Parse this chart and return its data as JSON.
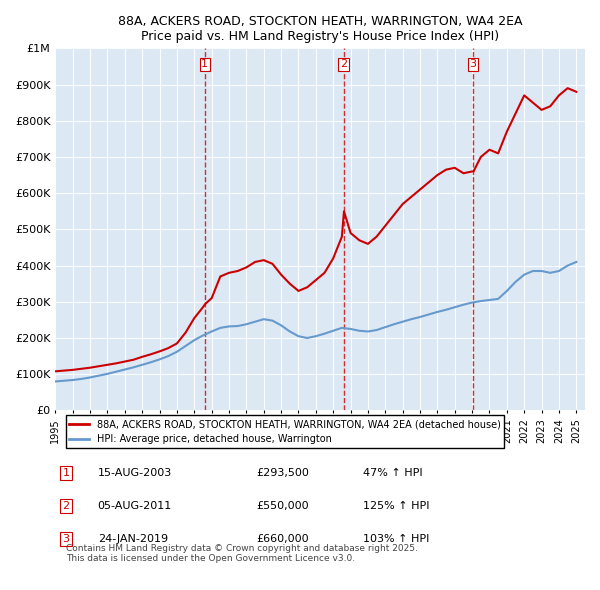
{
  "title": "88A, ACKERS ROAD, STOCKTON HEATH, WARRINGTON, WA4 2EA",
  "subtitle": "Price paid vs. HM Land Registry's House Price Index (HPI)",
  "xlabel": "",
  "ylabel": "",
  "ylim": [
    0,
    1000000
  ],
  "yticks": [
    0,
    100000,
    200000,
    300000,
    400000,
    500000,
    600000,
    700000,
    800000,
    900000,
    1000000
  ],
  "ytick_labels": [
    "£0",
    "£100K",
    "£200K",
    "£300K",
    "£400K",
    "£500K",
    "£600K",
    "£700K",
    "£800K",
    "£900K",
    "£1M"
  ],
  "xlim_start": 1995.0,
  "xlim_end": 2025.5,
  "bg_color": "#dce9f5",
  "plot_bg_color": "#dce9f5",
  "transactions": [
    {
      "num": 1,
      "date": "15-AUG-2003",
      "price": 293500,
      "pct": "47%",
      "dir": "↑",
      "x_year": 2003.6
    },
    {
      "num": 2,
      "date": "05-AUG-2011",
      "price": 550000,
      "pct": "125%",
      "dir": "↑",
      "x_year": 2011.6
    },
    {
      "num": 3,
      "date": "24-JAN-2019",
      "price": 660000,
      "pct": "103%",
      "dir": "↑",
      "x_year": 2019.05
    }
  ],
  "red_line_color": "#cc0000",
  "blue_line_color": "#6699cc",
  "vline_color": "#cc0000",
  "legend_label_red": "88A, ACKERS ROAD, STOCKTON HEATH, WARRINGTON, WA4 2EA (detached house)",
  "legend_label_blue": "HPI: Average price, detached house, Warrington",
  "footer1": "Contains HM Land Registry data © Crown copyright and database right 2025.",
  "footer2": "This data is licensed under the Open Government Licence v3.0.",
  "red_x": [
    1995.0,
    1995.5,
    1996.0,
    1996.5,
    1997.0,
    1997.5,
    1998.0,
    1998.5,
    1999.0,
    1999.5,
    2000.0,
    2000.5,
    2001.0,
    2001.5,
    2002.0,
    2002.5,
    2003.0,
    2003.5,
    2003.62,
    2004.0,
    2004.5,
    2005.0,
    2005.5,
    2006.0,
    2006.5,
    2007.0,
    2007.5,
    2008.0,
    2008.5,
    2009.0,
    2009.5,
    2010.0,
    2010.5,
    2011.0,
    2011.5,
    2011.62,
    2012.0,
    2012.5,
    2013.0,
    2013.5,
    2014.0,
    2014.5,
    2015.0,
    2015.5,
    2016.0,
    2016.5,
    2017.0,
    2017.5,
    2018.0,
    2018.5,
    2019.0,
    2019.08,
    2019.5,
    2020.0,
    2020.5,
    2021.0,
    2021.5,
    2022.0,
    2022.5,
    2023.0,
    2023.5,
    2024.0,
    2024.5,
    2025.0
  ],
  "red_y": [
    108000,
    110000,
    112000,
    115000,
    118000,
    122000,
    126000,
    130000,
    135000,
    140000,
    148000,
    155000,
    163000,
    172000,
    185000,
    215000,
    255000,
    285000,
    293500,
    310000,
    370000,
    380000,
    385000,
    395000,
    410000,
    415000,
    405000,
    375000,
    350000,
    330000,
    340000,
    360000,
    380000,
    420000,
    480000,
    550000,
    490000,
    470000,
    460000,
    480000,
    510000,
    540000,
    570000,
    590000,
    610000,
    630000,
    650000,
    665000,
    670000,
    655000,
    660000,
    660000,
    700000,
    720000,
    710000,
    770000,
    820000,
    870000,
    850000,
    830000,
    840000,
    870000,
    890000,
    880000
  ],
  "blue_x": [
    1995.0,
    1995.5,
    1996.0,
    1996.5,
    1997.0,
    1997.5,
    1998.0,
    1998.5,
    1999.0,
    1999.5,
    2000.0,
    2000.5,
    2001.0,
    2001.5,
    2002.0,
    2002.5,
    2003.0,
    2003.5,
    2004.0,
    2004.5,
    2005.0,
    2005.5,
    2006.0,
    2006.5,
    2007.0,
    2007.5,
    2008.0,
    2008.5,
    2009.0,
    2009.5,
    2010.0,
    2010.5,
    2011.0,
    2011.5,
    2012.0,
    2012.5,
    2013.0,
    2013.5,
    2014.0,
    2014.5,
    2015.0,
    2015.5,
    2016.0,
    2016.5,
    2017.0,
    2017.5,
    2018.0,
    2018.5,
    2019.0,
    2019.5,
    2020.0,
    2020.5,
    2021.0,
    2021.5,
    2022.0,
    2022.5,
    2023.0,
    2023.5,
    2024.0,
    2024.5,
    2025.0
  ],
  "blue_y": [
    80000,
    82000,
    84000,
    87000,
    91000,
    96000,
    101000,
    107000,
    113000,
    119000,
    126000,
    133000,
    141000,
    150000,
    162000,
    178000,
    194000,
    207000,
    218000,
    228000,
    232000,
    233000,
    238000,
    245000,
    252000,
    248000,
    235000,
    218000,
    205000,
    200000,
    205000,
    212000,
    220000,
    228000,
    225000,
    220000,
    218000,
    222000,
    230000,
    238000,
    245000,
    252000,
    258000,
    265000,
    272000,
    278000,
    285000,
    292000,
    298000,
    302000,
    305000,
    308000,
    330000,
    355000,
    375000,
    385000,
    385000,
    380000,
    385000,
    400000,
    410000
  ]
}
